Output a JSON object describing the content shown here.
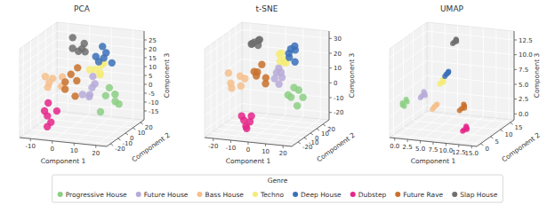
{
  "chart_data": [
    {
      "type": "scatter3d",
      "title": "PCA",
      "xlabel": "Component 1",
      "ylabel": "Component 2",
      "zlabel": "Component 3",
      "legend": "bottom",
      "legend_title": "Genre",
      "grid": true,
      "xlim": [
        -15,
        25
      ],
      "xticks": [
        -10,
        0,
        10,
        20
      ],
      "ylim": [
        -25,
        25
      ],
      "yticks": [
        -20,
        -10,
        0,
        10,
        20
      ],
      "zlim": [
        -20,
        30
      ],
      "zticks": [
        -15,
        -10,
        -5,
        0,
        5,
        10,
        15,
        20,
        25
      ],
      "series": [
        {
          "name": "Progressive House",
          "color": "#8ccf84",
          "x": [
            18,
            21,
            23,
            19,
            22,
            17
          ],
          "y": [
            -6,
            -2,
            -8,
            -4,
            0,
            -10
          ],
          "z": [
            2,
            -2,
            4,
            6,
            -4,
            -6
          ]
        },
        {
          "name": "Future House",
          "color": "#b7aad8",
          "x": [
            6,
            9,
            11,
            7,
            10,
            8
          ],
          "y": [
            -2,
            2,
            0,
            4,
            -4,
            6
          ],
          "z": [
            0,
            3,
            6,
            -3,
            1,
            8
          ]
        },
        {
          "name": "Bass House",
          "color": "#f6bf8c",
          "x": [
            -10,
            -7,
            -12,
            -5,
            -9,
            -6
          ],
          "y": [
            0,
            -4,
            4,
            2,
            -8,
            6
          ],
          "z": [
            4,
            8,
            0,
            2,
            10,
            6
          ]
        },
        {
          "name": "Techno",
          "color": "#f4ec78",
          "x": [
            9,
            12,
            11,
            8,
            13,
            10
          ],
          "y": [
            6,
            4,
            8,
            2,
            6,
            10
          ],
          "z": [
            12,
            10,
            14,
            13,
            16,
            9
          ]
        },
        {
          "name": "Deep House",
          "color": "#3b70b9",
          "x": [
            8,
            12,
            10,
            14,
            9,
            13
          ],
          "y": [
            10,
            12,
            8,
            14,
            16,
            6
          ],
          "z": [
            18,
            20,
            16,
            14,
            22,
            19
          ]
        },
        {
          "name": "Dubstep",
          "color": "#e5268a",
          "x": [
            -6,
            -3,
            -8,
            -4,
            -1,
            -7
          ],
          "y": [
            -14,
            -18,
            -12,
            -20,
            -16,
            -10
          ],
          "z": [
            -10,
            -12,
            -8,
            -14,
            -6,
            -4
          ]
        },
        {
          "name": "Future Rave",
          "color": "#c8712b",
          "x": [
            -2,
            2,
            0,
            4,
            -4,
            1
          ],
          "y": [
            -2,
            2,
            0,
            -6,
            4,
            6
          ],
          "z": [
            2,
            6,
            10,
            0,
            4,
            12
          ]
        },
        {
          "name": "Slap House",
          "color": "#6f6f6f",
          "x": [
            -2,
            2,
            0,
            -4,
            3,
            1
          ],
          "y": [
            8,
            12,
            10,
            14,
            6,
            16
          ],
          "z": [
            22,
            24,
            20,
            26,
            23,
            18
          ]
        }
      ]
    },
    {
      "type": "scatter3d",
      "title": "t-SNE",
      "xlabel": "Component 1",
      "ylabel": "Component 2",
      "zlabel": "Component 3",
      "grid": true,
      "xlim": [
        -25,
        25
      ],
      "xticks": [
        -20,
        -10,
        0,
        10,
        20
      ],
      "ylim": [
        -30,
        30
      ],
      "yticks": [
        -20,
        -10,
        0,
        10,
        20
      ],
      "zlim": [
        -25,
        35
      ],
      "zticks": [
        -20,
        -10,
        0,
        10,
        20,
        30
      ],
      "series": [
        {
          "x": [
            16,
            19,
            21,
            17,
            20,
            15
          ],
          "y": [
            -6,
            -2,
            -10,
            -4,
            2,
            -8
          ],
          "z": [
            0,
            4,
            -4,
            6,
            -2,
            2
          ]
        },
        {
          "x": [
            3,
            6,
            8,
            4,
            7,
            2
          ],
          "y": [
            4,
            6,
            2,
            8,
            0,
            10
          ],
          "z": [
            8,
            12,
            10,
            14,
            6,
            10
          ]
        },
        {
          "x": [
            -20,
            -16,
            -18,
            -14,
            -22,
            -17
          ],
          "y": [
            -2,
            2,
            -6,
            4,
            0,
            6
          ],
          "z": [
            4,
            8,
            2,
            6,
            10,
            0
          ]
        },
        {
          "x": [
            4,
            7,
            3,
            6,
            8,
            5
          ],
          "y": [
            10,
            8,
            12,
            14,
            6,
            9
          ],
          "z": [
            18,
            20,
            22,
            16,
            19,
            24
          ]
        },
        {
          "x": [
            9,
            12,
            10,
            14,
            11,
            8
          ],
          "y": [
            10,
            12,
            8,
            6,
            14,
            16
          ],
          "z": [
            24,
            26,
            22,
            20,
            28,
            25
          ]
        },
        {
          "x": [
            -6,
            -3,
            -8,
            -4,
            -1,
            -7
          ],
          "y": [
            -20,
            -24,
            -18,
            -16,
            -22,
            -14
          ],
          "z": [
            -14,
            -18,
            -12,
            -16,
            -10,
            -20
          ]
        },
        {
          "x": [
            -6,
            -2,
            -4,
            -8,
            0,
            -5
          ],
          "y": [
            0,
            4,
            -4,
            2,
            -2,
            6
          ],
          "z": [
            10,
            8,
            14,
            12,
            6,
            16
          ]
        },
        {
          "x": [
            -12,
            -9,
            -10,
            -7,
            -13,
            -11
          ],
          "y": [
            10,
            12,
            14,
            8,
            16,
            6
          ],
          "z": [
            28,
            30,
            26,
            32,
            27,
            29
          ]
        }
      ]
    },
    {
      "type": "scatter3d",
      "title": "UMAP",
      "xlabel": "Component 1",
      "ylabel": "Component 2",
      "zlabel": "Component 3",
      "grid": true,
      "xlim": [
        -1,
        16
      ],
      "xticks": [
        {
          "value": 0,
          "label": "0.0"
        },
        {
          "value": 2.5,
          "label": "2.5"
        },
        {
          "value": 5,
          "label": "5.0"
        },
        {
          "value": 7.5,
          "label": "7.5"
        },
        {
          "value": 10,
          "label": "10.0"
        },
        {
          "value": 12.5,
          "label": "12.5"
        },
        {
          "value": 15,
          "label": "15.0"
        }
      ],
      "ylim": [
        -2,
        17
      ],
      "yticks": [
        0,
        5,
        10,
        15
      ],
      "zlim": [
        -1,
        14
      ],
      "zticks": [
        {
          "value": 0,
          "label": "0.0"
        },
        {
          "value": 2.5,
          "label": "2.5"
        },
        {
          "value": 5,
          "label": "5.0"
        },
        {
          "value": 7.5,
          "label": "7.5"
        },
        {
          "value": 10,
          "label": "10.0"
        },
        {
          "value": 12.5,
          "label": "12.5"
        }
      ],
      "series": [
        {
          "x": [
            0,
            0.5,
            0.2,
            0.8,
            0.4
          ],
          "y": [
            2,
            2.5,
            1.5,
            2.2,
            1.8
          ],
          "z": [
            4,
            4.5,
            3.8,
            4.2,
            3.5
          ]
        },
        {
          "x": [
            3,
            3.4,
            2.8,
            3.2,
            3.6
          ],
          "y": [
            4,
            4.3,
            3.8,
            4.5,
            4.1
          ],
          "z": [
            5,
            5.3,
            4.7,
            5.6,
            5.1
          ]
        },
        {
          "x": [
            5,
            5.3,
            4.8,
            5.5,
            5.1
          ],
          "y": [
            5,
            5.4,
            4.7,
            5.2,
            4.9
          ],
          "z": [
            3,
            3.3,
            2.7,
            3.5,
            3.1
          ]
        },
        {
          "x": [
            6,
            6.3,
            5.8,
            6.2,
            6.4
          ],
          "y": [
            6,
            6.2,
            5.8,
            6.4,
            6.1
          ],
          "z": [
            7,
            7.3,
            6.8,
            7.5,
            7.1
          ]
        },
        {
          "x": [
            7,
            7.3,
            6.8,
            7.4,
            7.1
          ],
          "y": [
            6,
            6.3,
            5.8,
            6.1,
            6.4
          ],
          "z": [
            8.5,
            8.8,
            8.2,
            9,
            8.6
          ]
        },
        {
          "x": [
            12,
            12.4,
            11.8,
            12.2,
            12.5
          ],
          "y": [
            2,
            2.3,
            1.8,
            2.5,
            2.1
          ],
          "z": [
            0.5,
            0.8,
            0.3,
            1,
            0.6
          ]
        },
        {
          "x": [
            10,
            10.4,
            9.7,
            10.2,
            10.5
          ],
          "y": [
            6,
            6.3,
            5.7,
            6.5,
            6.1
          ],
          "z": [
            3,
            3.4,
            2.7,
            3.6,
            3.1
          ]
        },
        {
          "x": [
            7,
            7.3,
            6.8,
            7.2,
            7.4
          ],
          "y": [
            10,
            10.3,
            9.8,
            10.4,
            10.1
          ],
          "z": [
            13,
            13.3,
            12.8,
            13.4,
            13.1
          ]
        }
      ]
    }
  ]
}
